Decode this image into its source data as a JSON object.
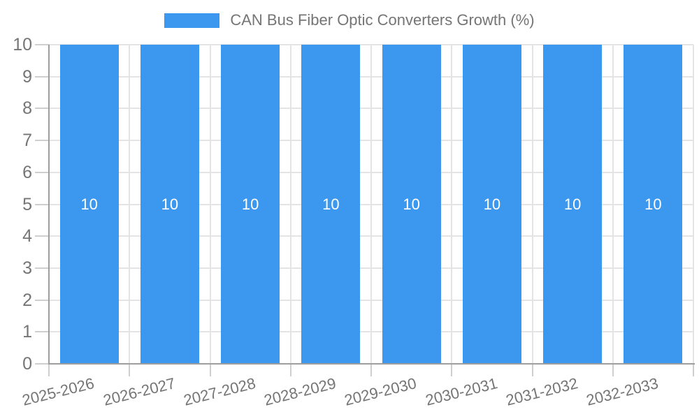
{
  "legend": {
    "label": "CAN Bus Fiber Optic Converters Growth (%)"
  },
  "colors": {
    "bar": "#3C98EE",
    "bar_label": "#ffffff",
    "axis": "#9e9e9e",
    "grid": "#e4e4e4",
    "tick": "#cfcfcf",
    "text": "#757575",
    "background": "#ffffff"
  },
  "chart_data": {
    "type": "bar",
    "title": "CAN Bus Fiber Optic Converters Growth (%)",
    "categories": [
      "2025-2026",
      "2026-2027",
      "2027-2028",
      "2028-2029",
      "2029-2030",
      "2030-2031",
      "2031-2032",
      "2032-2033"
    ],
    "values": [
      10,
      10,
      10,
      10,
      10,
      10,
      10,
      10
    ],
    "bar_value_labels": [
      "10",
      "10",
      "10",
      "10",
      "10",
      "10",
      "10",
      "10"
    ],
    "xlabel": "",
    "ylabel": "",
    "ylim": [
      0,
      10
    ],
    "yticks": [
      0,
      1,
      2,
      3,
      4,
      5,
      6,
      7,
      8,
      9,
      10
    ],
    "grid": true,
    "legend_position": "top"
  }
}
